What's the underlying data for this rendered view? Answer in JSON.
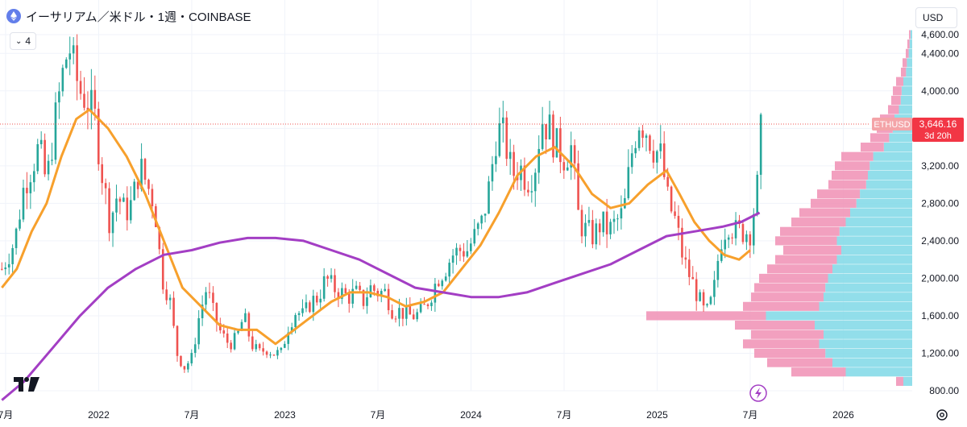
{
  "header": {
    "symbol_title": "イーサリアム／米ドル・1週・COINBASE",
    "indicator_count": "4",
    "currency": "USD"
  },
  "chart_data": {
    "type": "candlestick",
    "ylim": [
      800,
      4600
    ],
    "y_ticks": [
      800,
      1200,
      1600,
      2000,
      2400,
      2800,
      3200,
      3600,
      4000,
      4400,
      4600
    ],
    "y_tick_labels": [
      "800.00",
      "1,200.00",
      "1,600.00",
      "2,000.00",
      "2,400.00",
      "2,800.00",
      "3,200.00",
      "3,600.00",
      "4,000.00",
      "4,400.00",
      "4,600.00"
    ],
    "x_ticks": [
      2021.5,
      2022.0,
      2022.5,
      2023.0,
      2023.5,
      2024.0,
      2024.5,
      2025.0,
      2025.5,
      2026.0
    ],
    "x_tick_labels": [
      "7月",
      "2022",
      "7月",
      "2023",
      "7月",
      "2024",
      "7月",
      "2025",
      "7月",
      "2026"
    ],
    "xlim": [
      2021.47,
      2026.37
    ],
    "last_price": {
      "symbol": "ETHUSD",
      "value": 3646.16,
      "label": "3,646.16",
      "countdown": "3d 20h"
    },
    "close_path": [
      [
        2021.48,
        2100
      ],
      [
        2021.55,
        2400
      ],
      [
        2021.6,
        3000
      ],
      [
        2021.64,
        3200
      ],
      [
        2021.68,
        3400
      ],
      [
        2021.72,
        3000
      ],
      [
        2021.76,
        3600
      ],
      [
        2021.8,
        4100
      ],
      [
        2021.84,
        4500
      ],
      [
        2021.87,
        4200
      ],
      [
        2021.9,
        4000
      ],
      [
        2021.94,
        3900
      ],
      [
        2021.98,
        3700
      ],
      [
        2022.02,
        3100
      ],
      [
        2022.06,
        2600
      ],
      [
        2022.1,
        2900
      ],
      [
        2022.14,
        2700
      ],
      [
        2022.18,
        2800
      ],
      [
        2022.22,
        3200
      ],
      [
        2022.26,
        3000
      ],
      [
        2022.3,
        2800
      ],
      [
        2022.34,
        2000
      ],
      [
        2022.38,
        1800
      ],
      [
        2022.42,
        1200
      ],
      [
        2022.46,
        1050
      ],
      [
        2022.5,
        1150
      ],
      [
        2022.54,
        1600
      ],
      [
        2022.58,
        1900
      ],
      [
        2022.62,
        1600
      ],
      [
        2022.66,
        1400
      ],
      [
        2022.7,
        1300
      ],
      [
        2022.74,
        1350
      ],
      [
        2022.78,
        1600
      ],
      [
        2022.82,
        1300
      ],
      [
        2022.86,
        1200
      ],
      [
        2022.9,
        1250
      ],
      [
        2022.94,
        1200
      ],
      [
        2022.98,
        1200
      ],
      [
        2023.02,
        1500
      ],
      [
        2023.06,
        1650
      ],
      [
        2023.1,
        1600
      ],
      [
        2023.14,
        1750
      ],
      [
        2023.18,
        1800
      ],
      [
        2023.22,
        2000
      ],
      [
        2023.26,
        1900
      ],
      [
        2023.3,
        1850
      ],
      [
        2023.34,
        1800
      ],
      [
        2023.38,
        1850
      ],
      [
        2023.42,
        1750
      ],
      [
        2023.46,
        1900
      ],
      [
        2023.5,
        1850
      ],
      [
        2023.54,
        1850
      ],
      [
        2023.58,
        1650
      ],
      [
        2023.62,
        1650
      ],
      [
        2023.66,
        1600
      ],
      [
        2023.7,
        1600
      ],
      [
        2023.74,
        1650
      ],
      [
        2023.78,
        1800
      ],
      [
        2023.82,
        2000
      ],
      [
        2023.86,
        2100
      ],
      [
        2023.9,
        2250
      ],
      [
        2023.94,
        2300
      ],
      [
        2023.98,
        2300
      ],
      [
        2024.02,
        2450
      ],
      [
        2024.06,
        2600
      ],
      [
        2024.1,
        3000
      ],
      [
        2024.14,
        3600
      ],
      [
        2024.18,
        3500
      ],
      [
        2024.22,
        3100
      ],
      [
        2024.26,
        3200
      ],
      [
        2024.3,
        3050
      ],
      [
        2024.34,
        3150
      ],
      [
        2024.38,
        3700
      ],
      [
        2024.42,
        3600
      ],
      [
        2024.46,
        3400
      ],
      [
        2024.5,
        3300
      ],
      [
        2024.54,
        3400
      ],
      [
        2024.58,
        2600
      ],
      [
        2024.62,
        2500
      ],
      [
        2024.66,
        2450
      ],
      [
        2024.7,
        2600
      ],
      [
        2024.74,
        2500
      ],
      [
        2024.78,
        2600
      ],
      [
        2024.82,
        2700
      ],
      [
        2024.86,
        3300
      ],
      [
        2024.9,
        3700
      ],
      [
        2024.94,
        3600
      ],
      [
        2024.98,
        3400
      ],
      [
        2025.02,
        3300
      ],
      [
        2025.06,
        2800
      ],
      [
        2025.1,
        2600
      ],
      [
        2025.14,
        2200
      ],
      [
        2025.18,
        2000
      ],
      [
        2025.22,
        1800
      ],
      [
        2025.26,
        1600
      ],
      [
        2025.3,
        1800
      ],
      [
        2025.34,
        2400
      ],
      [
        2025.38,
        2600
      ],
      [
        2025.42,
        2500
      ],
      [
        2025.46,
        2500
      ],
      [
        2025.5,
        2500
      ],
      [
        2025.54,
        3000
      ],
      [
        2025.56,
        3646.16
      ]
    ],
    "series": [
      {
        "name": "",
        "color": "#f7a02c",
        "points": [
          [
            2021.48,
            1900
          ],
          [
            2021.56,
            2100
          ],
          [
            2021.64,
            2500
          ],
          [
            2021.72,
            2800
          ],
          [
            2021.8,
            3300
          ],
          [
            2021.88,
            3700
          ],
          [
            2021.95,
            3800
          ],
          [
            2022.05,
            3600
          ],
          [
            2022.15,
            3300
          ],
          [
            2022.25,
            2900
          ],
          [
            2022.35,
            2400
          ],
          [
            2022.45,
            1900
          ],
          [
            2022.55,
            1700
          ],
          [
            2022.65,
            1500
          ],
          [
            2022.75,
            1450
          ],
          [
            2022.85,
            1450
          ],
          [
            2022.95,
            1300
          ],
          [
            2023.05,
            1450
          ],
          [
            2023.15,
            1600
          ],
          [
            2023.25,
            1750
          ],
          [
            2023.35,
            1850
          ],
          [
            2023.45,
            1850
          ],
          [
            2023.55,
            1800
          ],
          [
            2023.65,
            1700
          ],
          [
            2023.75,
            1750
          ],
          [
            2023.85,
            1850
          ],
          [
            2023.95,
            2100
          ],
          [
            2024.05,
            2350
          ],
          [
            2024.15,
            2700
          ],
          [
            2024.25,
            3100
          ],
          [
            2024.35,
            3300
          ],
          [
            2024.45,
            3400
          ],
          [
            2024.55,
            3200
          ],
          [
            2024.65,
            2900
          ],
          [
            2024.75,
            2750
          ],
          [
            2024.85,
            2800
          ],
          [
            2024.95,
            3000
          ],
          [
            2025.05,
            3150
          ],
          [
            2025.12,
            2900
          ],
          [
            2025.2,
            2600
          ],
          [
            2025.28,
            2400
          ],
          [
            2025.36,
            2250
          ],
          [
            2025.44,
            2200
          ],
          [
            2025.5,
            2300
          ]
        ]
      },
      {
        "name": "",
        "color": "#a33ec4",
        "points": [
          [
            2021.48,
            700
          ],
          [
            2021.6,
            900
          ],
          [
            2021.75,
            1250
          ],
          [
            2021.9,
            1600
          ],
          [
            2022.05,
            1900
          ],
          [
            2022.2,
            2100
          ],
          [
            2022.35,
            2250
          ],
          [
            2022.5,
            2300
          ],
          [
            2022.65,
            2380
          ],
          [
            2022.8,
            2430
          ],
          [
            2022.95,
            2430
          ],
          [
            2023.1,
            2400
          ],
          [
            2023.25,
            2300
          ],
          [
            2023.4,
            2200
          ],
          [
            2023.55,
            2050
          ],
          [
            2023.7,
            1900
          ],
          [
            2023.85,
            1850
          ],
          [
            2024.0,
            1800
          ],
          [
            2024.15,
            1800
          ],
          [
            2024.3,
            1850
          ],
          [
            2024.45,
            1950
          ],
          [
            2024.6,
            2050
          ],
          [
            2024.75,
            2150
          ],
          [
            2024.9,
            2300
          ],
          [
            2025.05,
            2450
          ],
          [
            2025.2,
            2500
          ],
          [
            2025.35,
            2550
          ],
          [
            2025.45,
            2600
          ],
          [
            2025.55,
            2700
          ]
        ]
      }
    ],
    "volume_profile": {
      "bins": [
        [
          4600,
          4
        ],
        [
          4500,
          6
        ],
        [
          4400,
          8
        ],
        [
          4300,
          12
        ],
        [
          4200,
          14
        ],
        [
          4100,
          20
        ],
        [
          4000,
          24
        ],
        [
          3900,
          26
        ],
        [
          3800,
          30
        ],
        [
          3700,
          40
        ],
        [
          3600,
          44
        ],
        [
          3500,
          52
        ],
        [
          3400,
          64
        ],
        [
          3300,
          88
        ],
        [
          3200,
          96
        ],
        [
          3100,
          100
        ],
        [
          3000,
          104
        ],
        [
          2900,
          118
        ],
        [
          2800,
          126
        ],
        [
          2700,
          140
        ],
        [
          2600,
          150
        ],
        [
          2500,
          164
        ],
        [
          2400,
          170
        ],
        [
          2300,
          160
        ],
        [
          2200,
          170
        ],
        [
          2100,
          180
        ],
        [
          2000,
          190
        ],
        [
          1900,
          196
        ],
        [
          1800,
          200
        ],
        [
          1700,
          210
        ],
        [
          1600,
          330
        ],
        [
          1500,
          220
        ],
        [
          1400,
          200
        ],
        [
          1300,
          210
        ],
        [
          1200,
          196
        ],
        [
          1100,
          180
        ],
        [
          1000,
          150
        ],
        [
          900,
          20
        ]
      ],
      "color_up": "#7fd8e6",
      "color_down": "#f08fb4"
    }
  }
}
